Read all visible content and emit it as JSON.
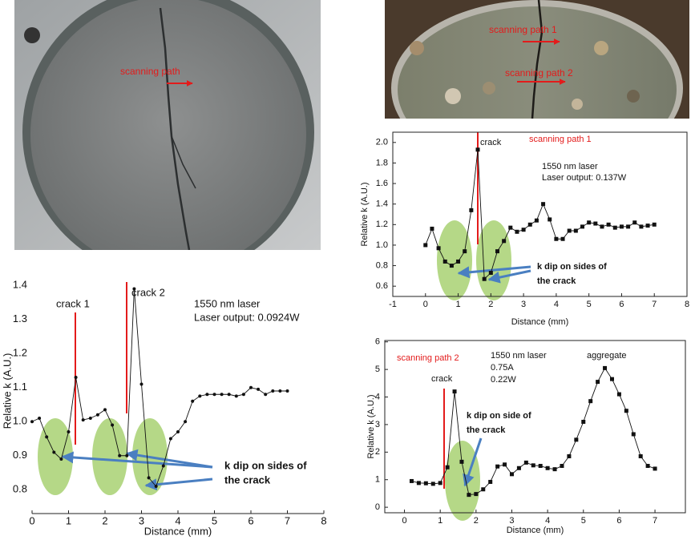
{
  "photos": [
    {
      "labels": [
        "scanning path"
      ]
    },
    {
      "labels": [
        "scanning path 1",
        "scanning path 2"
      ]
    }
  ],
  "chart_data": [
    {
      "type": "line",
      "marker": "circle",
      "color": "#111111",
      "xlabel": "Distance (mm)",
      "ylabel": "Relative k (A.U.)",
      "annotations": [
        "crack 1",
        "crack 2",
        "1550 nm laser",
        "Laser output: 0.0924W",
        "k dip on sides of",
        "the crack"
      ],
      "x": [
        0,
        0.2,
        0.4,
        0.6,
        0.8,
        1.0,
        1.2,
        1.4,
        1.6,
        1.8,
        2.0,
        2.2,
        2.4,
        2.6,
        2.8,
        3.0,
        3.2,
        3.4,
        3.6,
        3.8,
        4.0,
        4.2,
        4.4,
        4.6,
        4.8,
        5.0,
        5.2,
        5.4,
        5.6,
        5.8,
        6.0,
        6.2,
        6.4,
        6.6,
        6.8,
        7.0
      ],
      "values": [
        1.0,
        1.01,
        0.955,
        0.91,
        0.89,
        0.97,
        1.13,
        1.005,
        1.01,
        1.02,
        1.035,
        0.99,
        0.9,
        0.9,
        1.39,
        1.11,
        0.835,
        0.81,
        0.87,
        0.95,
        0.97,
        1.0,
        1.06,
        1.075,
        1.08,
        1.08,
        1.08,
        1.08,
        1.075,
        1.08,
        1.1,
        1.095,
        1.08,
        1.09,
        1.09,
        1.09
      ],
      "xlim": [
        0,
        8
      ],
      "ylim": [
        0.73,
        1.45
      ],
      "xticks": [
        0,
        1,
        2,
        3,
        4,
        5,
        6,
        7,
        8
      ],
      "yticks": [
        0.8,
        0.9,
        {
          "value": 1,
          "label": "1.0"
        },
        1.1,
        1.2,
        1.3,
        1.4
      ]
    },
    {
      "type": "line",
      "marker": "square",
      "color": "#111111",
      "xlabel": "Distance (mm)",
      "ylabel": "Relative k (A.U.)",
      "annotations": [
        "crack",
        "scanning path 1",
        "1550 nm laser",
        "Laser output: 0.137W",
        "k dip on sides of",
        "the crack"
      ],
      "x": [
        0,
        0.2,
        0.4,
        0.6,
        0.8,
        1.0,
        1.2,
        1.4,
        1.6,
        1.8,
        2.0,
        2.2,
        2.4,
        2.6,
        2.8,
        3.0,
        3.2,
        3.4,
        3.6,
        3.8,
        4.0,
        4.2,
        4.4,
        4.6,
        4.8,
        5.0,
        5.2,
        5.4,
        5.6,
        5.8,
        6.0,
        6.2,
        6.4,
        6.6,
        6.8,
        7.0
      ],
      "values": [
        1.0,
        1.16,
        0.97,
        0.84,
        0.8,
        0.84,
        0.94,
        1.34,
        1.93,
        0.67,
        0.73,
        0.94,
        1.04,
        1.17,
        1.13,
        1.15,
        1.2,
        1.24,
        1.4,
        1.25,
        1.06,
        1.06,
        1.14,
        1.14,
        1.18,
        1.22,
        1.21,
        1.18,
        1.2,
        1.17,
        1.18,
        1.18,
        1.22,
        1.18,
        1.19,
        1.2
      ],
      "xlim": [
        -1,
        8
      ],
      "ylim": [
        0.5,
        2.1
      ],
      "xticks": [
        -1,
        0,
        1,
        2,
        3,
        4,
        5,
        6,
        7,
        8
      ],
      "yticks": [
        0.6,
        0.8,
        {
          "value": 1,
          "label": "1.0"
        },
        1.2,
        1.4,
        1.6,
        1.8,
        {
          "value": 2,
          "label": "2.0"
        }
      ]
    },
    {
      "type": "line",
      "marker": "square",
      "color": "#111111",
      "xlabel": "Distance (mm)",
      "ylabel": "Relative k (A.U.)",
      "annotations": [
        "scanning path 2",
        "1550 nm laser",
        "0.75A",
        "0.22W",
        "aggregate",
        "crack",
        "k dip on side of",
        "the crack"
      ],
      "x": [
        0.2,
        0.4,
        0.6,
        0.8,
        1.0,
        1.2,
        1.4,
        1.6,
        1.8,
        2.0,
        2.2,
        2.4,
        2.6,
        2.8,
        3.0,
        3.2,
        3.4,
        3.6,
        3.8,
        4.0,
        4.2,
        4.4,
        4.6,
        4.8,
        5.0,
        5.2,
        5.4,
        5.6,
        5.8,
        6.0,
        6.2,
        6.4,
        6.6,
        6.8,
        7.0
      ],
      "values": [
        0.95,
        0.88,
        0.87,
        0.85,
        0.88,
        1.45,
        4.2,
        1.65,
        0.45,
        0.48,
        0.65,
        0.92,
        1.48,
        1.55,
        1.2,
        1.42,
        1.62,
        1.52,
        1.5,
        1.42,
        1.38,
        1.5,
        1.85,
        2.45,
        3.1,
        3.85,
        4.55,
        5.05,
        4.65,
        4.1,
        3.5,
        2.65,
        1.85,
        1.5,
        1.4
      ],
      "xlim": [
        -0.55,
        7.85
      ],
      "ylim": [
        -0.2,
        6.05
      ],
      "xticks": [
        0,
        1,
        2,
        3,
        4,
        5,
        6,
        7
      ],
      "yticks": [
        0,
        1,
        2,
        3,
        4,
        5,
        6
      ]
    }
  ]
}
